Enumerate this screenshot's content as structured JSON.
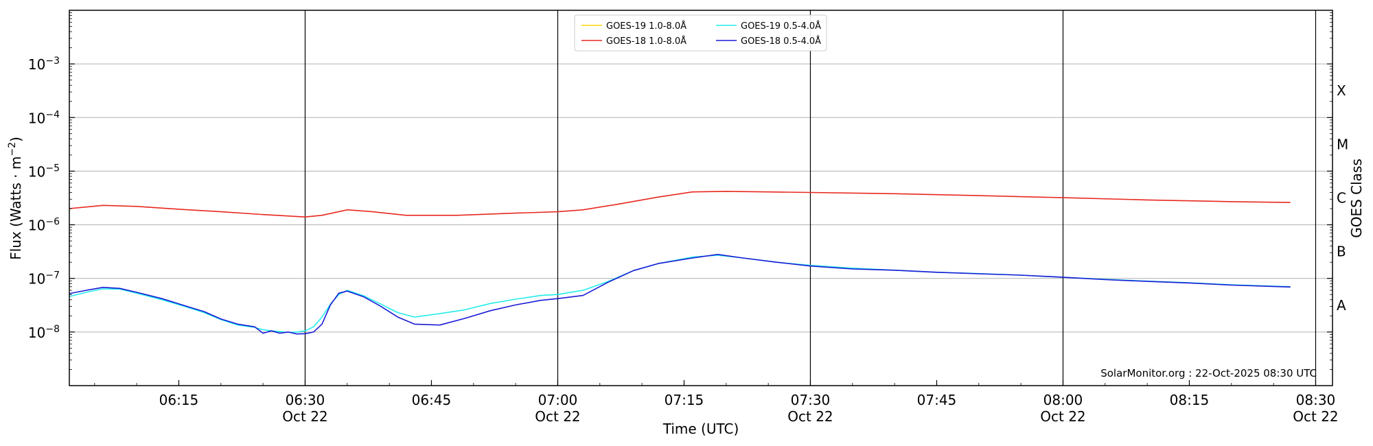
{
  "chart_data": {
    "type": "line",
    "title": "",
    "xlabel": "Time (UTC)",
    "ylabel": "Flux (Watts · m",
    "ylabel_exp": "−2",
    "ylabel_close": ")",
    "y_scale": "log",
    "ylim": [
      1e-09,
      0.01
    ],
    "xlim": [
      "2025-10-22 06:02",
      "2025-10-22 08:32"
    ],
    "grid": "horizontal at decades",
    "y_ticks": [
      {
        "value": 1e-08,
        "base": "10",
        "exp": "−8"
      },
      {
        "value": 1e-07,
        "base": "10",
        "exp": "−7"
      },
      {
        "value": 1e-06,
        "base": "10",
        "exp": "−6"
      },
      {
        "value": 1e-05,
        "base": "10",
        "exp": "−5"
      },
      {
        "value": 0.0001,
        "base": "10",
        "exp": "−4"
      },
      {
        "value": 0.001,
        "base": "10",
        "exp": "−3"
      }
    ],
    "x_ticks": [
      {
        "time": "2025-10-22 06:15",
        "label": "06:15",
        "date": ""
      },
      {
        "time": "2025-10-22 06:30",
        "label": "06:30",
        "date": "Oct 22"
      },
      {
        "time": "2025-10-22 06:45",
        "label": "06:45",
        "date": ""
      },
      {
        "time": "2025-10-22 07:00",
        "label": "07:00",
        "date": "Oct 22"
      },
      {
        "time": "2025-10-22 07:15",
        "label": "07:15",
        "date": ""
      },
      {
        "time": "2025-10-22 07:30",
        "label": "07:30",
        "date": "Oct 22"
      },
      {
        "time": "2025-10-22 07:45",
        "label": "07:45",
        "date": ""
      },
      {
        "time": "2025-10-22 08:00",
        "label": "08:00",
        "date": "Oct 22"
      },
      {
        "time": "2025-10-22 08:15",
        "label": "08:15",
        "date": ""
      },
      {
        "time": "2025-10-22 08:30",
        "label": "08:30",
        "date": "Oct 22"
      }
    ],
    "vertical_lines": [
      "2025-10-22 06:30",
      "2025-10-22 07:00",
      "2025-10-22 07:30",
      "2025-10-22 08:00",
      "2025-10-22 08:30"
    ],
    "right_axis": {
      "title": "GOES Class",
      "classes": [
        {
          "label": "A",
          "value": 1e-08
        },
        {
          "label": "B",
          "value": 1e-07
        },
        {
          "label": "C",
          "value": 1e-06
        },
        {
          "label": "M",
          "value": 1e-05
        },
        {
          "label": "X",
          "value": 0.0001
        }
      ]
    },
    "legend_position": "top-center",
    "credit": "SolarMonitor.org : 22-Oct-2025 08:30 UTC",
    "series": [
      {
        "name": "GOES-19 1.0-8.0Å",
        "color": "#FFD700",
        "x": [],
        "y": []
      },
      {
        "name": "GOES-18 1.0-8.0Å",
        "color": "#E8281E",
        "x": [
          "2025-10-22 06:02",
          "2025-10-22 06:06",
          "2025-10-22 06:10",
          "2025-10-22 06:15",
          "2025-10-22 06:20",
          "2025-10-22 06:25",
          "2025-10-22 06:30",
          "2025-10-22 06:32",
          "2025-10-22 06:35",
          "2025-10-22 06:38",
          "2025-10-22 06:42",
          "2025-10-22 06:48",
          "2025-10-22 06:55",
          "2025-10-22 07:00",
          "2025-10-22 07:03",
          "2025-10-22 07:07",
          "2025-10-22 07:12",
          "2025-10-22 07:16",
          "2025-10-22 07:20",
          "2025-10-22 07:25",
          "2025-10-22 07:30",
          "2025-10-22 07:40",
          "2025-10-22 07:50",
          "2025-10-22 08:00",
          "2025-10-22 08:10",
          "2025-10-22 08:20",
          "2025-10-22 08:27"
        ],
        "y": [
          2e-06,
          2.3e-06,
          2.2e-06,
          1.95e-06,
          1.75e-06,
          1.55e-06,
          1.4e-06,
          1.5e-06,
          1.9e-06,
          1.75e-06,
          1.5e-06,
          1.5e-06,
          1.65e-06,
          1.75e-06,
          1.9e-06,
          2.4e-06,
          3.3e-06,
          4.1e-06,
          4.2e-06,
          4.1e-06,
          4e-06,
          3.8e-06,
          3.5e-06,
          3.2e-06,
          2.9e-06,
          2.7e-06,
          2.6e-06
        ]
      },
      {
        "name": "GOES-19 0.5-4.0Å",
        "color": "#22EDEA",
        "x": [
          "2025-10-22 06:02",
          "2025-10-22 06:04",
          "2025-10-22 06:06",
          "2025-10-22 06:08",
          "2025-10-22 06:10",
          "2025-10-22 06:13",
          "2025-10-22 06:16",
          "2025-10-22 06:18",
          "2025-10-22 06:20",
          "2025-10-22 06:22",
          "2025-10-22 06:24",
          "2025-10-22 06:25",
          "2025-10-22 06:26",
          "2025-10-22 06:27",
          "2025-10-22 06:28",
          "2025-10-22 06:29",
          "2025-10-22 06:30",
          "2025-10-22 06:31",
          "2025-10-22 06:32",
          "2025-10-22 06:33",
          "2025-10-22 06:34",
          "2025-10-22 06:35",
          "2025-10-22 06:37",
          "2025-10-22 06:39",
          "2025-10-22 06:41",
          "2025-10-22 06:43",
          "2025-10-22 06:46",
          "2025-10-22 06:49",
          "2025-10-22 06:52",
          "2025-10-22 06:55",
          "2025-10-22 06:58",
          "2025-10-22 07:00",
          "2025-10-22 07:03",
          "2025-10-22 07:06",
          "2025-10-22 07:09",
          "2025-10-22 07:12",
          "2025-10-22 07:16",
          "2025-10-22 07:19",
          "2025-10-22 07:22",
          "2025-10-22 07:26",
          "2025-10-22 07:30",
          "2025-10-22 07:35",
          "2025-10-22 07:40",
          "2025-10-22 07:45",
          "2025-10-22 07:50",
          "2025-10-22 07:55",
          "2025-10-22 08:00",
          "2025-10-22 08:05",
          "2025-10-22 08:10",
          "2025-10-22 08:15",
          "2025-10-22 08:20",
          "2025-10-22 08:27"
        ],
        "y": [
          4.6e-08,
          5.5e-08,
          6.4e-08,
          6.3e-08,
          5.3e-08,
          4e-08,
          2.9e-08,
          2.3e-08,
          1.7e-08,
          1.35e-08,
          1.22e-08,
          1.1e-08,
          1.05e-08,
          1.02e-08,
          9.8e-09,
          1e-08,
          1.05e-08,
          1.25e-08,
          1.9e-08,
          3.3e-08,
          5e-08,
          6e-08,
          4.7e-08,
          3.3e-08,
          2.3e-08,
          1.9e-08,
          2.2e-08,
          2.6e-08,
          3.4e-08,
          4.1e-08,
          4.8e-08,
          5e-08,
          6e-08,
          8.8e-08,
          1.4e-07,
          1.9e-07,
          2.5e-07,
          2.7e-07,
          2.4e-07,
          2e-07,
          1.75e-07,
          1.55e-07,
          1.42e-07,
          1.3e-07,
          1.23e-07,
          1.15e-07,
          1.05e-07,
          9.6e-08,
          8.9e-08,
          8.3e-08,
          7.6e-08,
          7e-08
        ]
      },
      {
        "name": "GOES-18 0.5-4.0Å",
        "color": "#1A1AD6",
        "x": [
          "2025-10-22 06:02",
          "2025-10-22 06:04",
          "2025-10-22 06:06",
          "2025-10-22 06:08",
          "2025-10-22 06:10",
          "2025-10-22 06:13",
          "2025-10-22 06:16",
          "2025-10-22 06:18",
          "2025-10-22 06:20",
          "2025-10-22 06:22",
          "2025-10-22 06:24",
          "2025-10-22 06:25",
          "2025-10-22 06:26",
          "2025-10-22 06:27",
          "2025-10-22 06:28",
          "2025-10-22 06:29",
          "2025-10-22 06:30",
          "2025-10-22 06:31",
          "2025-10-22 06:32",
          "2025-10-22 06:33",
          "2025-10-22 06:34",
          "2025-10-22 06:35",
          "2025-10-22 06:37",
          "2025-10-22 06:39",
          "2025-10-22 06:41",
          "2025-10-22 06:43",
          "2025-10-22 06:46",
          "2025-10-22 06:49",
          "2025-10-22 06:52",
          "2025-10-22 06:55",
          "2025-10-22 06:58",
          "2025-10-22 07:00",
          "2025-10-22 07:03",
          "2025-10-22 07:06",
          "2025-10-22 07:09",
          "2025-10-22 07:12",
          "2025-10-22 07:16",
          "2025-10-22 07:19",
          "2025-10-22 07:22",
          "2025-10-22 07:26",
          "2025-10-22 07:30",
          "2025-10-22 07:35",
          "2025-10-22 07:40",
          "2025-10-22 07:45",
          "2025-10-22 07:50",
          "2025-10-22 07:55",
          "2025-10-22 08:00",
          "2025-10-22 08:05",
          "2025-10-22 08:10",
          "2025-10-22 08:15",
          "2025-10-22 08:20",
          "2025-10-22 08:27"
        ],
        "y": [
          5.2e-08,
          6e-08,
          6.8e-08,
          6.5e-08,
          5.5e-08,
          4.2e-08,
          3e-08,
          2.4e-08,
          1.75e-08,
          1.4e-08,
          1.25e-08,
          9.5e-09,
          1.05e-08,
          9.5e-09,
          1e-08,
          9.2e-09,
          9.3e-09,
          1e-08,
          1.4e-08,
          3.2e-08,
          5.3e-08,
          5.8e-08,
          4.5e-08,
          3e-08,
          1.9e-08,
          1.4e-08,
          1.35e-08,
          1.8e-08,
          2.5e-08,
          3.2e-08,
          3.9e-08,
          4.2e-08,
          4.8e-08,
          8.5e-08,
          1.4e-07,
          1.9e-07,
          2.4e-07,
          2.8e-07,
          2.4e-07,
          2e-07,
          1.7e-07,
          1.5e-07,
          1.42e-07,
          1.3e-07,
          1.22e-07,
          1.15e-07,
          1.05e-07,
          9.5e-08,
          8.8e-08,
          8.2e-08,
          7.5e-08,
          6.9e-08
        ]
      }
    ]
  }
}
